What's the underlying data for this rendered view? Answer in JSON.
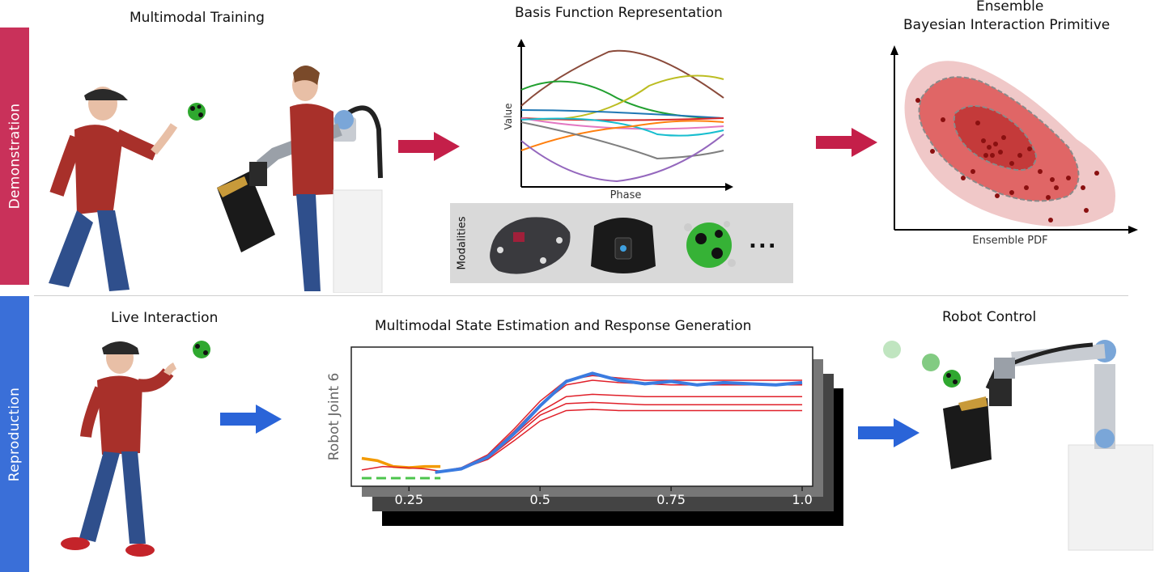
{
  "sections": {
    "demonstration": "Demonstration",
    "reproduction": "Reproduction"
  },
  "titles": {
    "multimodal_training": "Multimodal Training",
    "basis_function": "Basis Function Representation",
    "ensemble_line1": "Ensemble",
    "ensemble_line2": "Bayesian Interaction Primitive",
    "live_interaction": "Live Interaction",
    "state_estimation": "Multimodal State Estimation and Response Generation",
    "robot_control": "Robot Control"
  },
  "basis_plot": {
    "ylabel": "Value",
    "xlabel": "Phase"
  },
  "ensemble_plot": {
    "xlabel": "Ensemble PDF"
  },
  "modalities": {
    "label": "Modalities",
    "more": "..."
  },
  "chart_data": {
    "type": "line",
    "ylabel": "Robot Joint 6",
    "xlabel": "",
    "x_ticks": [
      "0.25",
      "0.5",
      "0.75",
      "1.0"
    ],
    "x_tick_values": [
      0.25,
      0.5,
      0.75,
      1.0
    ],
    "xlim": [
      0.14,
      1.02
    ],
    "ylim": [
      0,
      1
    ],
    "grid": false,
    "series": [
      {
        "color": "#3a7be0",
        "x": [
          0.3,
          0.35,
          0.4,
          0.45,
          0.5,
          0.55,
          0.6,
          0.65,
          0.7,
          0.75,
          0.8,
          0.85,
          0.9,
          0.95,
          1.0
        ],
        "y": [
          0.05,
          0.08,
          0.18,
          0.38,
          0.62,
          0.83,
          0.9,
          0.84,
          0.81,
          0.83,
          0.8,
          0.82,
          0.81,
          0.8,
          0.82
        ]
      },
      {
        "color": "#e0202a",
        "x": [
          0.3,
          0.35,
          0.4,
          0.45,
          0.5,
          0.55,
          0.6,
          0.65,
          0.7,
          0.75,
          0.8,
          0.85,
          0.9,
          0.95,
          1.0
        ],
        "y": [
          0.05,
          0.09,
          0.2,
          0.42,
          0.66,
          0.84,
          0.88,
          0.86,
          0.84,
          0.84,
          0.84,
          0.84,
          0.84,
          0.84,
          0.84
        ]
      },
      {
        "color": "#e0202a",
        "x": [
          0.3,
          0.35,
          0.4,
          0.45,
          0.5,
          0.55,
          0.6,
          0.65,
          0.7,
          0.75,
          0.8,
          0.85,
          0.9,
          0.95,
          1.0
        ],
        "y": [
          0.05,
          0.08,
          0.19,
          0.4,
          0.63,
          0.8,
          0.84,
          0.82,
          0.81,
          0.8,
          0.8,
          0.8,
          0.8,
          0.8,
          0.8
        ]
      },
      {
        "color": "#e0202a",
        "x": [
          0.3,
          0.35,
          0.4,
          0.45,
          0.5,
          0.55,
          0.6,
          0.65,
          0.7,
          0.75,
          0.8,
          0.85,
          0.9,
          0.95,
          1.0
        ],
        "y": [
          0.05,
          0.08,
          0.18,
          0.37,
          0.57,
          0.7,
          0.72,
          0.71,
          0.7,
          0.7,
          0.7,
          0.7,
          0.7,
          0.7,
          0.7
        ]
      },
      {
        "color": "#e0202a",
        "x": [
          0.3,
          0.35,
          0.4,
          0.45,
          0.5,
          0.55,
          0.6,
          0.65,
          0.7,
          0.75,
          0.8,
          0.85,
          0.9,
          0.95,
          1.0
        ],
        "y": [
          0.05,
          0.08,
          0.17,
          0.35,
          0.54,
          0.64,
          0.65,
          0.64,
          0.63,
          0.63,
          0.63,
          0.63,
          0.63,
          0.63,
          0.63
        ]
      },
      {
        "color": "#e0202a",
        "x": [
          0.3,
          0.35,
          0.4,
          0.45,
          0.5,
          0.55,
          0.6,
          0.65,
          0.7,
          0.75,
          0.8,
          0.85,
          0.9,
          0.95,
          1.0
        ],
        "y": [
          0.05,
          0.08,
          0.16,
          0.32,
          0.49,
          0.58,
          0.59,
          0.58,
          0.58,
          0.58,
          0.58,
          0.58,
          0.58,
          0.58,
          0.58
        ]
      },
      {
        "color": "#f39a00",
        "x": [
          0.16,
          0.19,
          0.22,
          0.25,
          0.28,
          0.31
        ],
        "y": [
          0.17,
          0.15,
          0.1,
          0.09,
          0.1,
          0.1
        ]
      },
      {
        "color": "#e0202a",
        "x": [
          0.16,
          0.2,
          0.24,
          0.28,
          0.31
        ],
        "y": [
          0.07,
          0.1,
          0.09,
          0.08,
          0.06
        ]
      }
    ],
    "dashed_series": {
      "color": "#4cc44c",
      "x": [
        0.16,
        0.31
      ],
      "y": [
        0.0,
        0.0
      ]
    }
  }
}
